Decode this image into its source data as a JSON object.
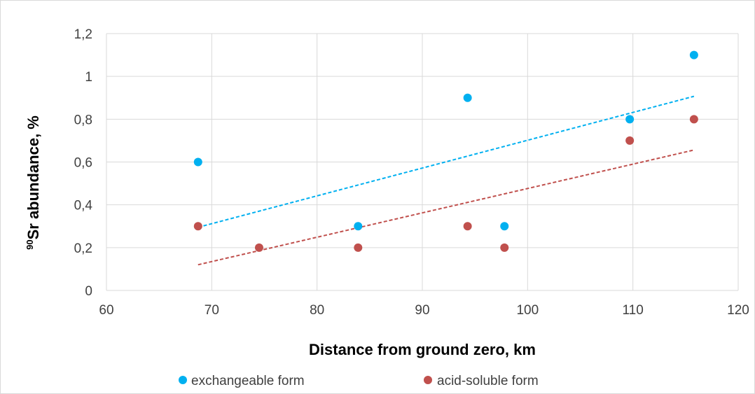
{
  "chart_data": {
    "type": "scatter",
    "xlabel": "Distance from ground zero, km",
    "ylabel_sup": "90",
    "ylabel": "Sr abundance, %",
    "xlim": [
      60,
      120
    ],
    "ylim": [
      0,
      1.2
    ],
    "x_ticks": [
      "60",
      "70",
      "80",
      "90",
      "100",
      "110",
      "120"
    ],
    "y_ticks": [
      "0",
      "0,2",
      "0,4",
      "0,6",
      "0,8",
      "1",
      "1,2"
    ],
    "grid": true,
    "legend_position": "bottom",
    "series": [
      {
        "name": "exchangeable form",
        "color": "#00b0f0",
        "points": [
          [
            68.7,
            0.6
          ],
          [
            83.9,
            0.3
          ],
          [
            94.3,
            0.9
          ],
          [
            97.8,
            0.3
          ],
          [
            109.7,
            0.8
          ],
          [
            115.8,
            1.1
          ]
        ],
        "trendline": {
          "style": "dashed",
          "x": [
            68.7,
            115.8
          ],
          "y": [
            0.295,
            0.907
          ]
        }
      },
      {
        "name": "acid-soluble form",
        "color": "#c0504d",
        "points": [
          [
            68.7,
            0.3
          ],
          [
            74.5,
            0.2
          ],
          [
            83.9,
            0.2
          ],
          [
            94.3,
            0.3
          ],
          [
            97.8,
            0.2
          ],
          [
            109.7,
            0.7
          ],
          [
            115.8,
            0.8
          ]
        ],
        "trendline": {
          "style": "dashed",
          "x": [
            68.7,
            115.8
          ],
          "y": [
            0.12,
            0.656
          ]
        }
      }
    ]
  }
}
